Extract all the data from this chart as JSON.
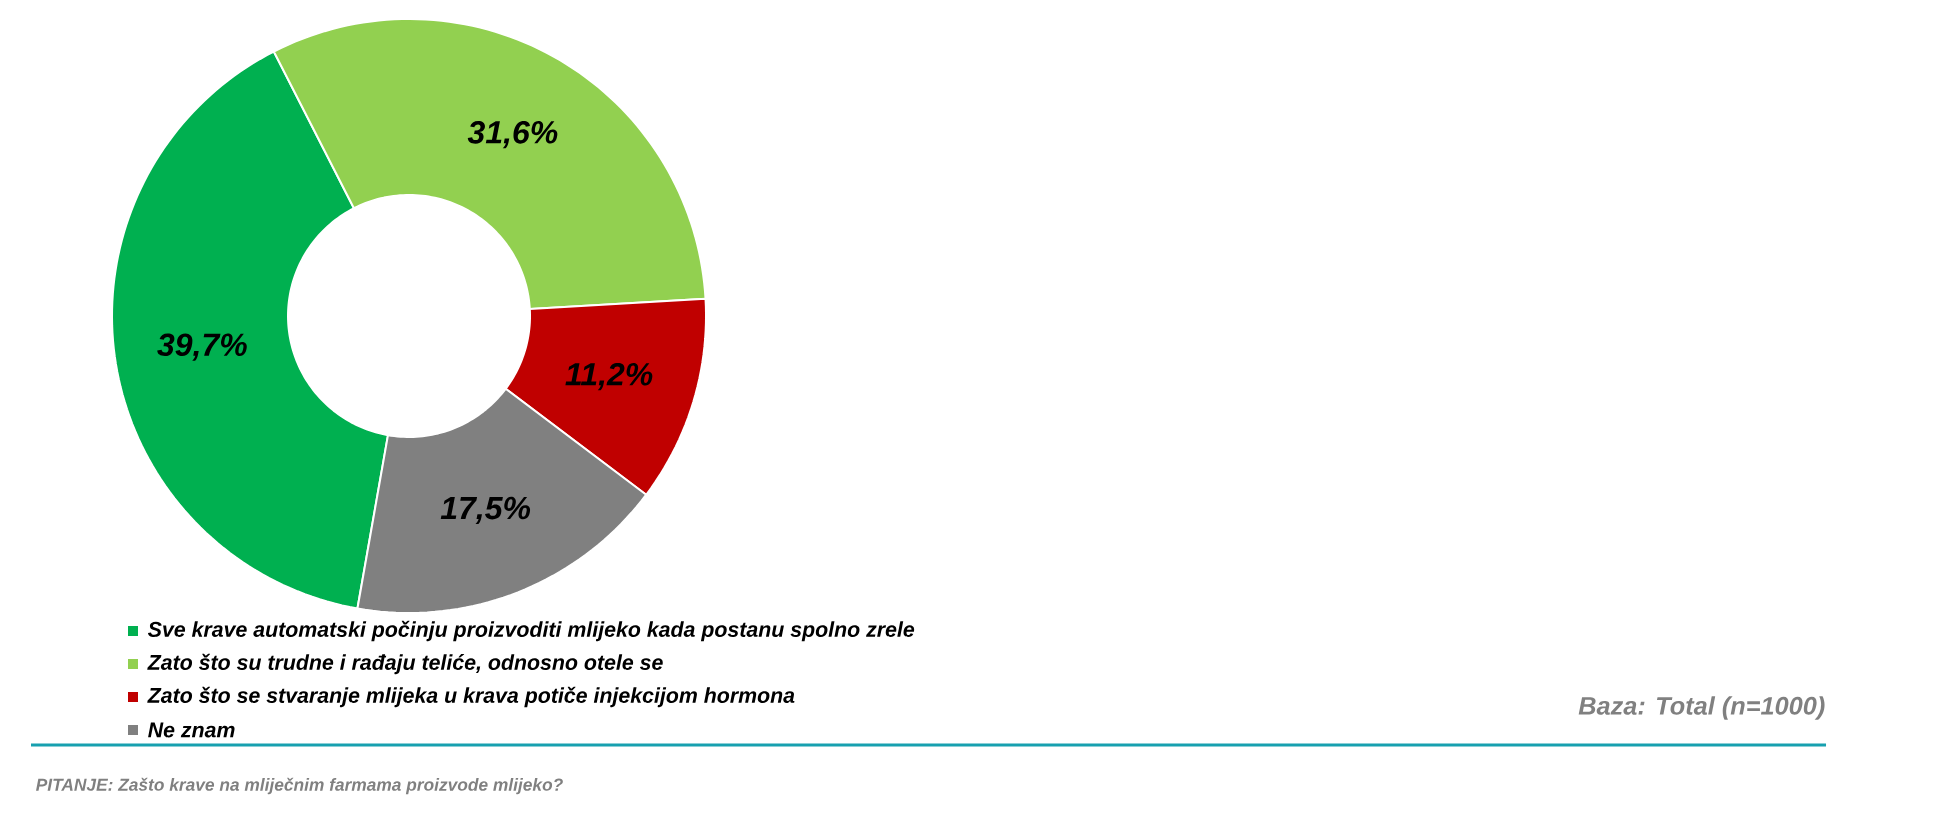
{
  "chart_data": {
    "type": "donut",
    "categories": [
      "Sve krave automatski počinju proizvoditi mlijeko kada postanu spolno zrele",
      "Zato što su trudne i rađaju teliće, odnosno otele se",
      "Zato što se stvaranje mlijeka u krava potiče injekcijom hormona",
      "Ne znam"
    ],
    "values": [
      39.7,
      31.6,
      11.2,
      17.5
    ],
    "colors": [
      "#00b050",
      "#92d050",
      "#c00000",
      "#808080"
    ],
    "value_labels": [
      "39,7%",
      "31,6%",
      "11,2%",
      "17,5%"
    ],
    "legend": "bottom",
    "annotations": [
      "Baza: Total (n=1000)",
      "PITANJE: Zašto krave na mliječnim farmama proizvode mlijeko?"
    ]
  }
}
